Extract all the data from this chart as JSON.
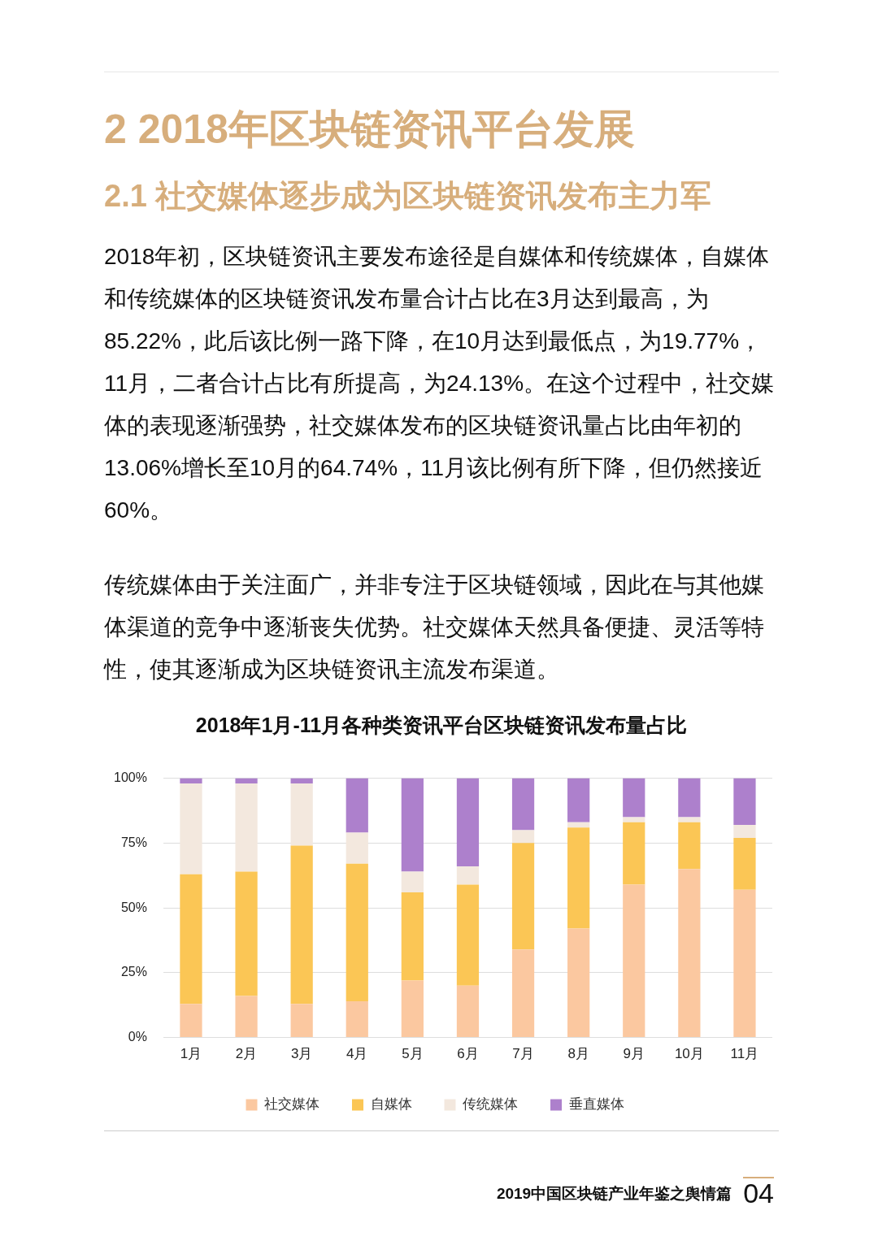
{
  "chart_data": {
    "type": "bar",
    "stacked": true,
    "title": "2018年1月-11月各种类资讯平台区块链资讯发布量占比",
    "annotations": [
      "2 2018年区块链资讯平台发展",
      "2.1 社交媒体逐步成为区块链资讯发布主力军",
      "2018年初，区块链资讯主要发布途径是自媒体和传统媒体，自媒体和传统媒体的区块链资讯发布量合计占比在3月达到最高，为85.22%，此后该比例一路下降，在10月达到最低点，为19.77%，11月，二者合计占比有所提高，为24.13%。在这个过程中，社交媒体的表现逐渐强势，社交媒体发布的区块链资讯量占比由年初的13.06%增长至10月的64.74%，11月该比例有所下降，但仍然接近60%。",
      "传统媒体由于关注面广，并非专注于区块链领域，因此在与其他媒体渠道的竞争中逐渐丧失优势。社交媒体天然具备便捷、灵活等特性，使其逐渐成为区块链资讯主流发布渠道。",
      "2019中国区块链产业年鉴之舆情篇",
      "04"
    ],
    "categories": [
      "1月",
      "2月",
      "3月",
      "4月",
      "5月",
      "6月",
      "7月",
      "8月",
      "9月",
      "10月",
      "11月"
    ],
    "series": [
      {
        "name": "社交媒体",
        "color": "#fbc8a0",
        "values": [
          13,
          16,
          13,
          14,
          22,
          20,
          34,
          42,
          59,
          65,
          57
        ]
      },
      {
        "name": "自媒体",
        "color": "#fbc655",
        "values": [
          50,
          48,
          61,
          53,
          34,
          39,
          41,
          39,
          24,
          18,
          20
        ]
      },
      {
        "name": "传统媒体",
        "color": "#f3e8de",
        "values": [
          35,
          34,
          24,
          12,
          8,
          7,
          5,
          2,
          2,
          2,
          5
        ]
      },
      {
        "name": "垂直媒体",
        "color": "#ad80cc",
        "values": [
          2,
          2,
          2,
          21,
          36,
          34,
          20,
          17,
          15,
          15,
          18
        ]
      }
    ],
    "ylim": [
      0,
      100
    ],
    "yticks": [
      {
        "value": 0,
        "label": "0%"
      },
      {
        "value": 25,
        "label": "25%"
      },
      {
        "value": 50,
        "label": "50%"
      },
      {
        "value": 75,
        "label": "75%"
      },
      {
        "value": 100,
        "label": "100%"
      }
    ],
    "grid": "y",
    "legend": "bottom"
  }
}
